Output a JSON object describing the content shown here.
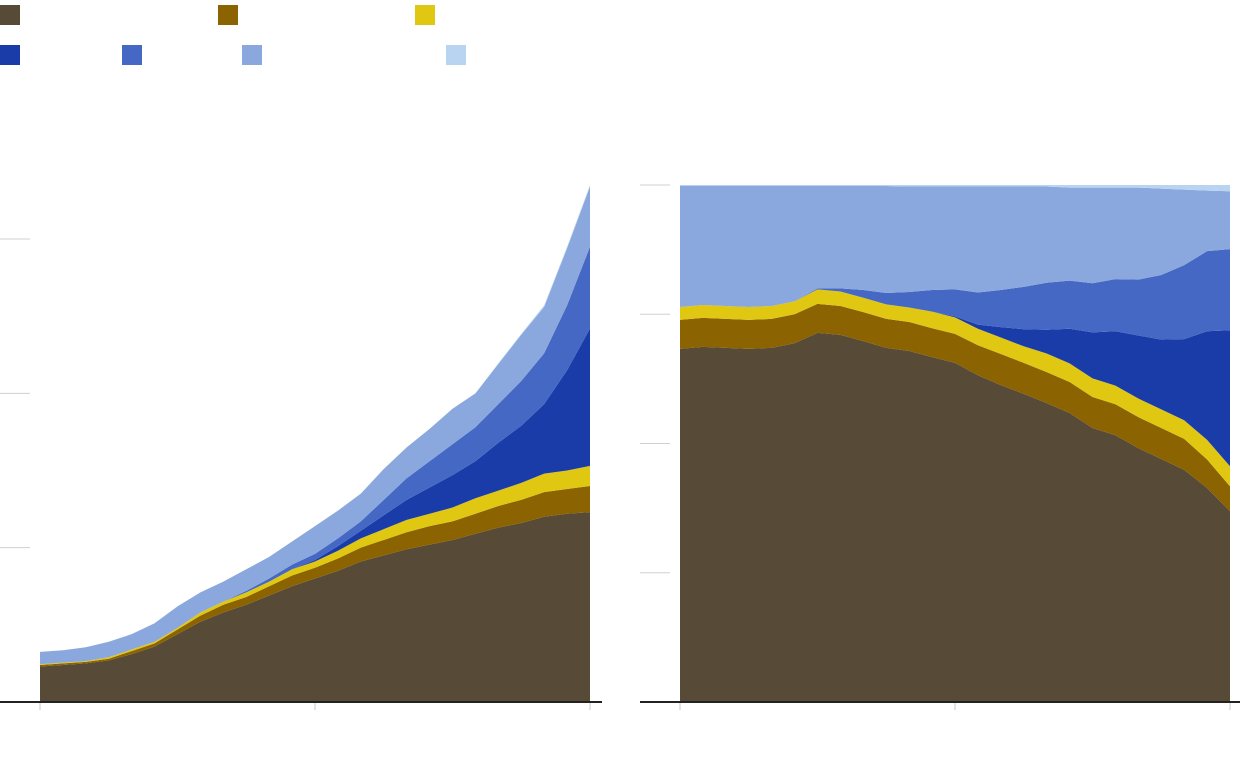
{
  "chart_data": [
    {
      "type": "stacked-area",
      "x": [
        0,
        1,
        2,
        3,
        4,
        5,
        6,
        7,
        8,
        9,
        10,
        11,
        12,
        13,
        14,
        15,
        16,
        17,
        18,
        19,
        20,
        21,
        22,
        23,
        24
      ],
      "xlim": [
        0,
        24
      ],
      "xticks": [
        0,
        12,
        24
      ],
      "ylim": [
        0,
        3.35
      ],
      "yticks": [
        1,
        2,
        3
      ],
      "series": [
        {
          "color": "#574a37",
          "values": [
            0.23,
            0.24,
            0.25,
            0.27,
            0.31,
            0.36,
            0.44,
            0.52,
            0.58,
            0.63,
            0.69,
            0.75,
            0.8,
            0.85,
            0.91,
            0.95,
            0.99,
            1.02,
            1.05,
            1.09,
            1.13,
            1.16,
            1.2,
            1.22,
            1.23
          ]
        },
        {
          "color": "#8b6300",
          "values": [
            0.01,
            0.01,
            0.01,
            0.01,
            0.02,
            0.02,
            0.03,
            0.04,
            0.05,
            0.05,
            0.06,
            0.07,
            0.07,
            0.08,
            0.09,
            0.1,
            0.11,
            0.12,
            0.12,
            0.13,
            0.14,
            0.15,
            0.16,
            0.16,
            0.17
          ]
        },
        {
          "color": "#e0c712",
          "values": [
            0.005,
            0.005,
            0.005,
            0.01,
            0.01,
            0.01,
            0.01,
            0.02,
            0.02,
            0.03,
            0.03,
            0.04,
            0.04,
            0.05,
            0.06,
            0.07,
            0.08,
            0.08,
            0.09,
            0.1,
            0.1,
            0.11,
            0.12,
            0.12,
            0.13
          ]
        },
        {
          "color": "#1a3ca8",
          "values": [
            0,
            0,
            0,
            0,
            0,
            0,
            0,
            0,
            0,
            0,
            0,
            0,
            0.01,
            0.03,
            0.05,
            0.09,
            0.13,
            0.17,
            0.21,
            0.24,
            0.31,
            0.37,
            0.45,
            0.65,
            0.89
          ]
        },
        {
          "color": "#4568c4",
          "values": [
            0,
            0,
            0,
            0,
            0,
            0,
            0,
            0,
            0,
            0.01,
            0.02,
            0.03,
            0.04,
            0.05,
            0.06,
            0.1,
            0.14,
            0.17,
            0.2,
            0.22,
            0.25,
            0.29,
            0.33,
            0.42,
            0.53
          ]
        },
        {
          "color": "#8aa8de",
          "values": [
            0.08,
            0.08,
            0.09,
            0.1,
            0.1,
            0.12,
            0.14,
            0.13,
            0.13,
            0.14,
            0.14,
            0.15,
            0.18,
            0.18,
            0.18,
            0.2,
            0.2,
            0.21,
            0.23,
            0.22,
            0.26,
            0.3,
            0.3,
            0.37,
            0.39
          ]
        },
        {
          "color": "#b8d4f0",
          "values": [
            0,
            0,
            0,
            0,
            0,
            0,
            0,
            0,
            0,
            0,
            0,
            0,
            0,
            0,
            0,
            0,
            0,
            0,
            0,
            0,
            0.005,
            0.005,
            0.01,
            0.01,
            0.01
          ]
        }
      ]
    },
    {
      "type": "stacked-area",
      "x": [
        0,
        1,
        2,
        3,
        4,
        5,
        6,
        7,
        8,
        9,
        10,
        11,
        12,
        13,
        14,
        15,
        16,
        17,
        18,
        19,
        20,
        21,
        22,
        23,
        24
      ],
      "xlim": [
        0,
        24
      ],
      "xticks": [
        0,
        12,
        24
      ],
      "ylim": [
        0,
        100
      ],
      "yticks": [
        25,
        50,
        75,
        100
      ],
      "series": [
        {
          "color": "#574a37",
          "values": [
            68.3,
            68.7,
            68.5,
            68.3,
            68.5,
            69.4,
            71.4,
            71.0,
            69.8,
            68.5,
            67.9,
            66.7,
            65.6,
            63.2,
            61.3,
            59.6,
            57.8,
            55.9,
            53.0,
            51.6,
            49.1,
            47.0,
            44.9,
            41.4,
            36.9
          ]
        },
        {
          "color": "#8b6300",
          "values": [
            5.6,
            5.6,
            5.6,
            5.6,
            5.6,
            5.6,
            5.6,
            5.6,
            5.6,
            5.6,
            5.6,
            5.6,
            5.6,
            5.8,
            6.0,
            6.0,
            6.0,
            6.0,
            6.0,
            6.0,
            6.0,
            6.0,
            6.0,
            5.5,
            4.8
          ]
        },
        {
          "color": "#e0c712",
          "values": [
            2.5,
            2.5,
            2.5,
            2.5,
            2.5,
            2.5,
            2.8,
            2.8,
            2.8,
            2.8,
            2.8,
            3.2,
            3.2,
            3.2,
            3.2,
            3.2,
            3.6,
            3.6,
            3.6,
            3.6,
            3.6,
            3.6,
            3.6,
            3.8,
            3.9
          ]
        },
        {
          "color": "#1a3ca8",
          "values": [
            0,
            0,
            0,
            0,
            0,
            0,
            0,
            0,
            0,
            0,
            0,
            0,
            0.2,
            0.8,
            2.0,
            3.3,
            4.6,
            6.7,
            8.9,
            10.5,
            12.2,
            13.5,
            15.7,
            21.0,
            26.3
          ]
        },
        {
          "color": "#4568c4",
          "values": [
            0,
            0,
            0,
            0,
            0,
            0,
            0.2,
            0.6,
            1.5,
            2.2,
            3.0,
            4.2,
            5.2,
            6.2,
            7.2,
            8.2,
            9.1,
            9.3,
            9.5,
            10.1,
            10.8,
            12.5,
            14.3,
            15.5,
            15.7
          ]
        },
        {
          "color": "#8aa8de",
          "values": [
            23.4,
            23.0,
            23.2,
            23.4,
            23.2,
            22.3,
            19.8,
            19.8,
            20.1,
            20.7,
            20.4,
            20.0,
            19.9,
            20.5,
            20.0,
            19.4,
            18.6,
            18.0,
            18.5,
            17.7,
            17.8,
            16.7,
            14.6,
            11.7,
            11.2
          ]
        },
        {
          "color": "#b8d4f0",
          "values": [
            0.2,
            0.2,
            0.2,
            0.2,
            0.2,
            0.2,
            0.2,
            0.2,
            0.2,
            0.2,
            0.3,
            0.3,
            0.3,
            0.3,
            0.3,
            0.3,
            0.3,
            0.5,
            0.5,
            0.5,
            0.5,
            0.7,
            0.9,
            1.1,
            1.2
          ]
        }
      ]
    }
  ]
}
